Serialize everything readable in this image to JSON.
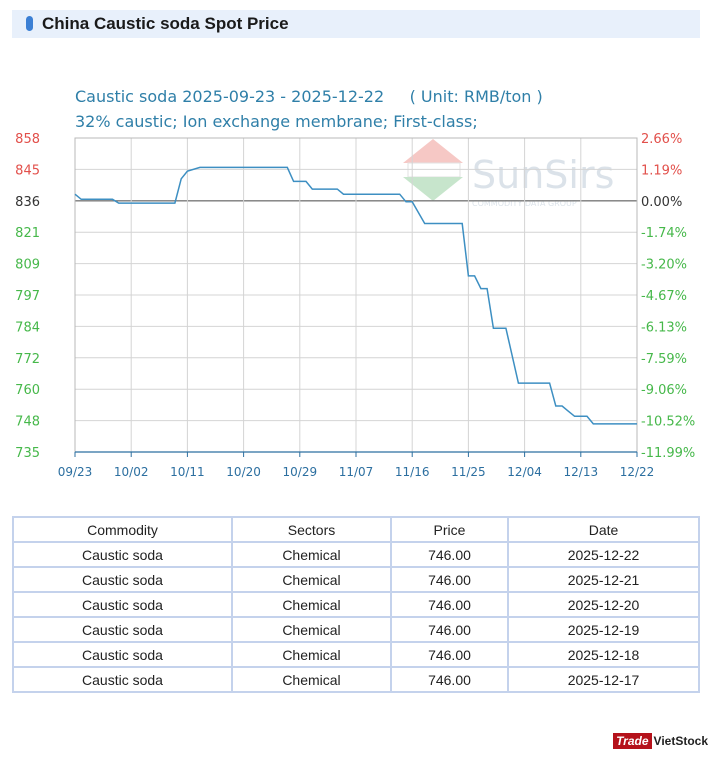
{
  "header": {
    "title": "China Caustic soda Spot Price"
  },
  "watermark": {
    "name": "SunSirs",
    "tagline": "COMMODITY DATA GROUP"
  },
  "colors": {
    "line": "#3d8fc2",
    "title": "#2f7fa8",
    "up": "#e2504b",
    "down": "#46b84a",
    "grid": "#d4d4d4",
    "axis": "#2c6fa0"
  },
  "chart_data": {
    "type": "line",
    "title": "Caustic soda 2025-09-23 - 2025-12-22     ( Unit: RMB/ton )",
    "subtitle": "32% caustic; Ion exchange membrane; First-class;",
    "xlabel": "",
    "ylabel": "",
    "x_ticks": [
      "09/23",
      "10/02",
      "10/11",
      "10/20",
      "10/29",
      "11/07",
      "11/16",
      "11/25",
      "12/04",
      "12/13",
      "12/22"
    ],
    "y_ticks_left": [
      "858",
      "845",
      "836",
      "821",
      "809",
      "797",
      "784",
      "772",
      "760",
      "748",
      "735"
    ],
    "y_ticks_right": [
      "2.66%",
      "1.19%",
      "0.00%",
      "-1.74%",
      "-3.20%",
      "-4.67%",
      "-6.13%",
      "-7.59%",
      "-9.06%",
      "-10.52%",
      "-11.99%"
    ],
    "ylim": [
      735,
      858
    ],
    "xlim": [
      "2025-09-23",
      "2025-12-22"
    ],
    "baseline": 836,
    "grid": true,
    "series": [
      {
        "points": [
          [
            "2025-09-23",
            836
          ],
          [
            "2025-09-24",
            834
          ],
          [
            "2025-09-29",
            834
          ],
          [
            "2025-09-30",
            832.5
          ],
          [
            "2025-10-09",
            832.5
          ],
          [
            "2025-10-10",
            842
          ],
          [
            "2025-10-11",
            845
          ],
          [
            "2025-10-13",
            846.5
          ],
          [
            "2025-10-27",
            846.5
          ],
          [
            "2025-10-28",
            841
          ],
          [
            "2025-10-30",
            841
          ],
          [
            "2025-10-31",
            838
          ],
          [
            "2025-11-04",
            838
          ],
          [
            "2025-11-05",
            836
          ],
          [
            "2025-11-14",
            836
          ],
          [
            "2025-11-15",
            833
          ],
          [
            "2025-11-16",
            833
          ],
          [
            "2025-11-18",
            824.5
          ],
          [
            "2025-11-24",
            824.5
          ],
          [
            "2025-11-25",
            804
          ],
          [
            "2025-11-26",
            804
          ],
          [
            "2025-11-27",
            799
          ],
          [
            "2025-11-28",
            799
          ],
          [
            "2025-11-29",
            783.5
          ],
          [
            "2025-12-01",
            783.5
          ],
          [
            "2025-12-03",
            762
          ],
          [
            "2025-12-08",
            762
          ],
          [
            "2025-12-09",
            753
          ],
          [
            "2025-12-10",
            753
          ],
          [
            "2025-12-11",
            751
          ],
          [
            "2025-12-12",
            749
          ],
          [
            "2025-12-14",
            749
          ],
          [
            "2025-12-15",
            746
          ],
          [
            "2025-12-22",
            746
          ]
        ]
      }
    ]
  },
  "table": {
    "headers": [
      "Commodity",
      "Sectors",
      "Price",
      "Date"
    ],
    "rows": [
      [
        "Caustic soda",
        "Chemical",
        "746.00",
        "2025-12-22"
      ],
      [
        "Caustic soda",
        "Chemical",
        "746.00",
        "2025-12-21"
      ],
      [
        "Caustic soda",
        "Chemical",
        "746.00",
        "2025-12-20"
      ],
      [
        "Caustic soda",
        "Chemical",
        "746.00",
        "2025-12-19"
      ],
      [
        "Caustic soda",
        "Chemical",
        "746.00",
        "2025-12-18"
      ],
      [
        "Caustic soda",
        "Chemical",
        "746.00",
        "2025-12-17"
      ]
    ]
  },
  "brand": {
    "part1": "Trade",
    "part2": "VietStock"
  }
}
